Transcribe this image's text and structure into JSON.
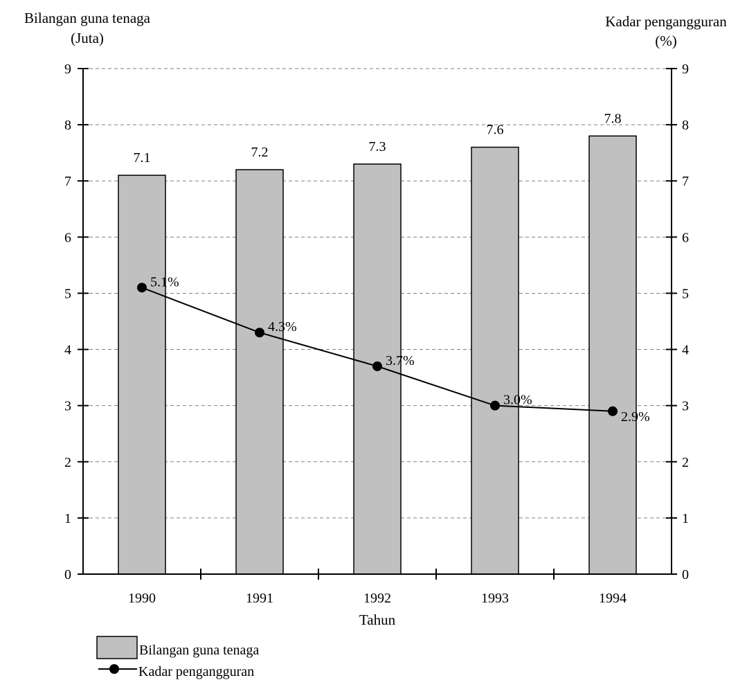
{
  "chart_data": {
    "type": "bar",
    "categories": [
      "1990",
      "1991",
      "1992",
      "1993",
      "1994"
    ],
    "series": [
      {
        "name": "Bilangan guna tenaga",
        "type": "bar",
        "axis": "left",
        "values": [
          7.1,
          7.2,
          7.3,
          7.6,
          7.8
        ],
        "labels": [
          "7.1",
          "7.2",
          "7.3",
          "7.6",
          "7.8"
        ],
        "color": "#c0c0c0"
      },
      {
        "name": "Kadar pengangguran",
        "type": "line",
        "axis": "right",
        "values": [
          5.1,
          4.3,
          3.7,
          3.0,
          2.9
        ],
        "labels": [
          "5.1%",
          "4.3%",
          "3.7%",
          "3.0%",
          "2.9%"
        ],
        "color": "#000000"
      }
    ],
    "ylabel_left": [
      "Bilangan guna tenaga",
      "(Juta)"
    ],
    "ylabel_right": [
      "Kadar pengangguran",
      "(%)"
    ],
    "xlabel": "Tahun",
    "ylim": [
      0,
      9
    ],
    "yticks_left": [
      "0",
      "1",
      "2",
      "3",
      "4",
      "5",
      "6",
      "7",
      "8",
      "9"
    ],
    "yticks_right": [
      "0",
      "1",
      "2",
      "3",
      "4",
      "5",
      "6",
      "7",
      "8",
      "9"
    ],
    "grid": true,
    "legend_position": "bottom-left"
  }
}
